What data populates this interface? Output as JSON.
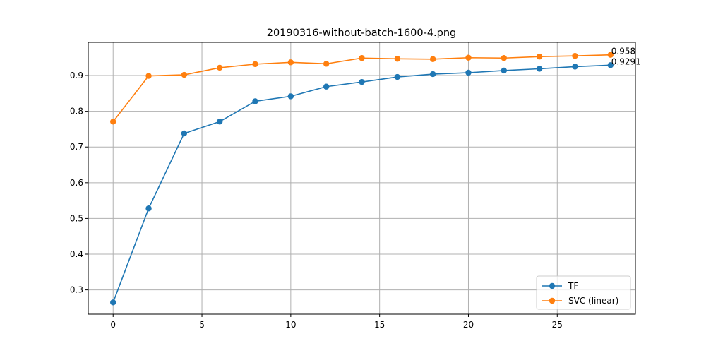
{
  "chart_data": {
    "type": "line",
    "title": "20190316-without-batch-1600-4.png",
    "xlabel": "",
    "ylabel": "",
    "xlim": [
      -1.4,
      29.4
    ],
    "ylim": [
      0.232,
      0.993
    ],
    "xticks": [
      0,
      5,
      10,
      15,
      20,
      25
    ],
    "yticks": [
      0.3,
      0.4,
      0.5,
      0.6,
      0.7,
      0.8,
      0.9
    ],
    "ytick_labels": [
      "0.3",
      "0.4",
      "0.5",
      "0.6",
      "0.7",
      "0.8",
      "0.9"
    ],
    "xtick_labels": [
      "0",
      "5",
      "10",
      "15",
      "20",
      "25"
    ],
    "grid": true,
    "legend_position": "lower-right",
    "x": [
      0,
      2,
      4,
      6,
      8,
      10,
      12,
      14,
      16,
      18,
      20,
      22,
      24,
      26,
      28
    ],
    "series": [
      {
        "name": "TF",
        "color": "#1f77b4",
        "values": [
          0.265,
          0.528,
          0.738,
          0.771,
          0.828,
          0.842,
          0.869,
          0.882,
          0.896,
          0.904,
          0.908,
          0.914,
          0.919,
          0.925,
          0.9291
        ]
      },
      {
        "name": "SVC (linear)",
        "color": "#ff7f0e",
        "values": [
          0.771,
          0.899,
          0.902,
          0.922,
          0.932,
          0.937,
          0.933,
          0.949,
          0.947,
          0.946,
          0.95,
          0.949,
          0.953,
          0.955,
          0.958
        ]
      }
    ],
    "annotations": [
      {
        "text": "0.958",
        "x": 28,
        "y": 0.958
      },
      {
        "text": "0.9291",
        "x": 28,
        "y": 0.9291
      }
    ]
  }
}
